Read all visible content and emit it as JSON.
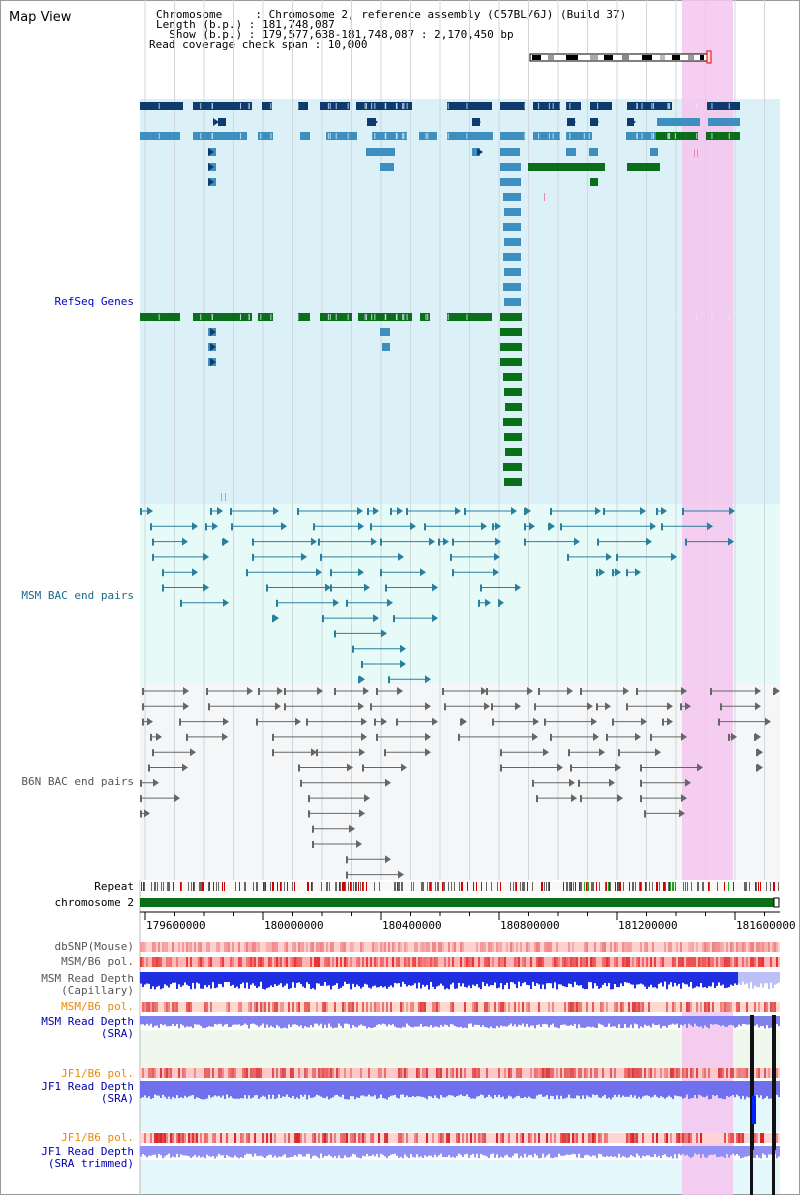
{
  "view_title": "Map View",
  "info": {
    "chromosome": "Chromosome     : Chromosome 2, reference assembly (C57BL/6J) (Build 37)",
    "length": "Length (b.p.) : 181,748,087",
    "show": "  Show (b.p.) : 179,577,638-181,748,087 : 2,170,450 bp",
    "coverage": "Read coverage check span : 10,000"
  },
  "tracks": {
    "refseq": "RefSeq Genes",
    "msm_bac": "MSM BAC end pairs",
    "b6n_bac": "B6N BAC end pairs",
    "repeat": "Repeat",
    "chromosome": "chromosome 2",
    "dbsnp": "dbSNP(Mouse)",
    "msm_b6_pol_1": "MSM/B6 pol.",
    "msm_depth_cap": "MSM Read Depth\n(Capillary)",
    "msm_b6_pol_2": "MSM/B6 pol.",
    "msm_depth_sra": "MSM Read Depth\n(SRA)",
    "jf1_b6_pol_1": "JF1/B6 pol.",
    "jf1_depth_sra": "JF1 Read Depth\n(SRA)",
    "jf1_b6_pol_2": "JF1/B6 pol.",
    "jf1_depth_trim": "JF1 Read Depth\n(SRA trimmed)"
  },
  "axis": {
    "ticks": [
      "179600000",
      "180000000",
      "180400000",
      "180800000",
      "181200000",
      "181600000"
    ]
  },
  "colors": {
    "refseq_label": "#0000cc",
    "msm_label": "#1a6a8a",
    "b6n_label": "#555555",
    "pol_label": "#ee8800",
    "depth_label": "#0000aa",
    "highlight": "#f4c6ef"
  },
  "icons": {
    "ideogram": "chromosome-ideogram-icon"
  }
}
